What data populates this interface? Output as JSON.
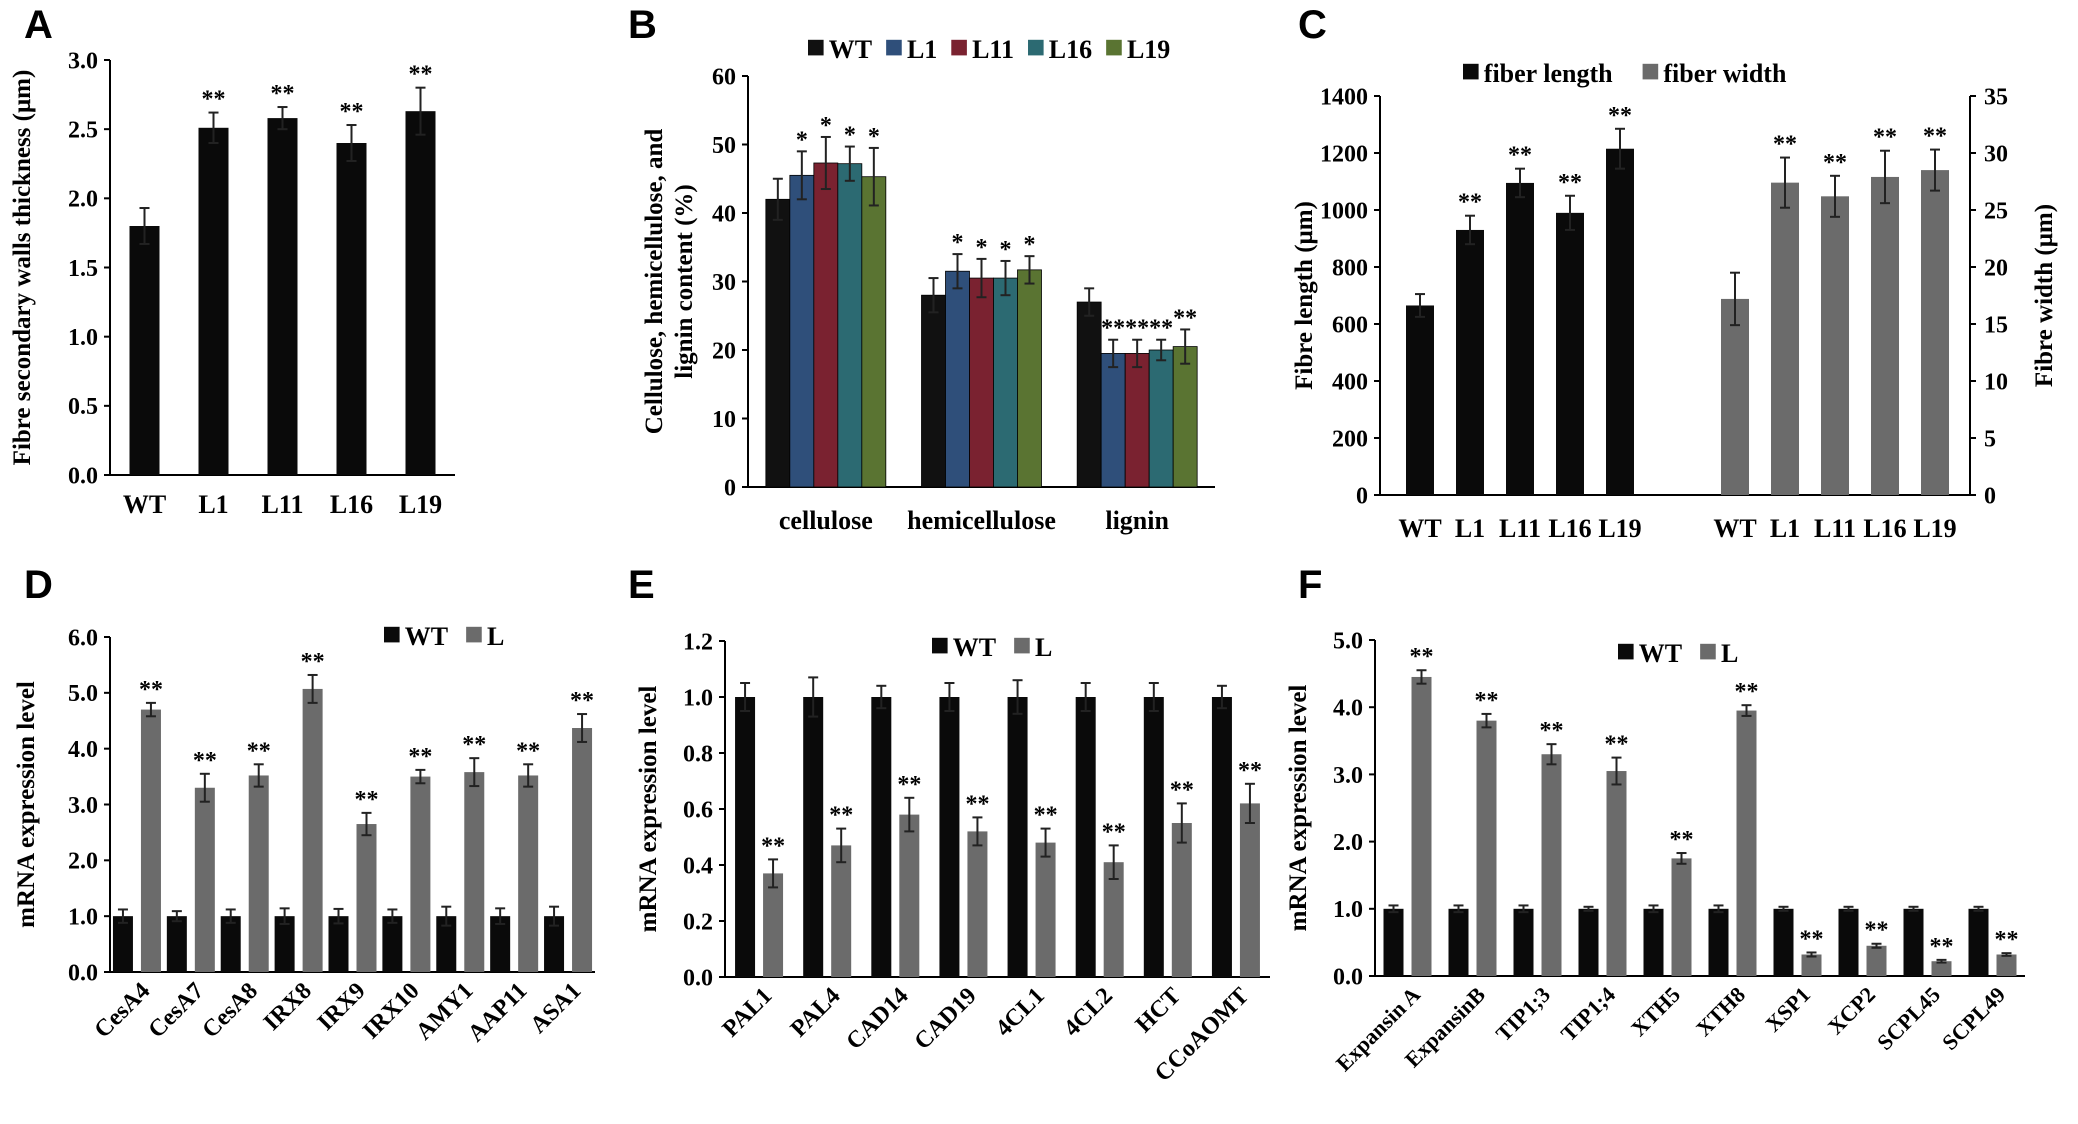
{
  "figure": {
    "panels": [
      "A",
      "B",
      "C",
      "D",
      "E",
      "F"
    ]
  },
  "chart_data": [
    {
      "panel": "A",
      "type": "bar",
      "title": "",
      "xlabel": "",
      "ylabel": "Fibre secondary walls thickness (μm)",
      "ylim": [
        0,
        3.0
      ],
      "ytick_step": 0.5,
      "ytick_decimals": 1,
      "categories": [
        "WT",
        "L1",
        "L11",
        "L16",
        "L19"
      ],
      "series": [
        {
          "name": "",
          "color": "#0a0a0a",
          "values": [
            1.8,
            2.51,
            2.58,
            2.4,
            2.63
          ],
          "errors": [
            0.13,
            0.11,
            0.08,
            0.13,
            0.17
          ],
          "marks": [
            "",
            "**",
            "**",
            "**",
            "**"
          ]
        }
      ]
    },
    {
      "panel": "B",
      "type": "bar",
      "title": "",
      "xlabel": "",
      "ylabel_lines": [
        "Cellulose, hemicellulose, and",
        "lignin content (%)"
      ],
      "ylim": [
        0,
        60
      ],
      "ytick_step": 10,
      "ytick_decimals": 0,
      "categories": [
        "cellulose",
        "hemicellulose",
        "lignin"
      ],
      "legend": [
        "WT",
        "L1",
        "L11",
        "L16",
        "L19"
      ],
      "series": [
        {
          "name": "WT",
          "color": "#111111",
          "values": [
            42,
            28,
            27
          ],
          "errors": [
            3,
            2.5,
            2
          ],
          "marks": [
            "",
            "",
            ""
          ]
        },
        {
          "name": "L1",
          "color": "#2f4f7a",
          "values": [
            45.5,
            31.5,
            19.5
          ],
          "errors": [
            3.5,
            2.5,
            2
          ],
          "marks": [
            "*",
            "*",
            "**"
          ]
        },
        {
          "name": "L11",
          "color": "#7a2230",
          "values": [
            47.3,
            30.5,
            19.5
          ],
          "errors": [
            3.8,
            2.8,
            2
          ],
          "marks": [
            "*",
            "*",
            "**"
          ]
        },
        {
          "name": "L16",
          "color": "#2c6a72",
          "values": [
            47.2,
            30.5,
            20
          ],
          "errors": [
            2.5,
            2.5,
            1.5
          ],
          "marks": [
            "*",
            "*",
            "**"
          ]
        },
        {
          "name": "L19",
          "color": "#5a7432",
          "values": [
            45.3,
            31.7,
            20.5
          ],
          "errors": [
            4.2,
            2,
            2.5
          ],
          "marks": [
            "*",
            "*",
            "**"
          ]
        }
      ]
    },
    {
      "panel": "C",
      "type": "bar",
      "title": "",
      "xlabel": "",
      "ylabel_left": "Fibre length (μm)",
      "ylabel_right": "Fibre width (μm)",
      "ylim_left": [
        0,
        1400
      ],
      "ylim_right": [
        0,
        35
      ],
      "ytick_step_left": 200,
      "ytick_step_right": 5,
      "legend": [
        "fiber length",
        "fiber width"
      ],
      "groups": [
        {
          "name": "fiber length",
          "axis": "left",
          "color": "#0a0a0a",
          "categories": [
            "WT",
            "L1",
            "L11",
            "L16",
            "L19"
          ],
          "values": [
            665,
            930,
            1095,
            990,
            1215
          ],
          "errors": [
            40,
            50,
            50,
            60,
            70
          ],
          "marks": [
            "",
            "**",
            "**",
            "**",
            "**"
          ]
        },
        {
          "name": "fiber width",
          "axis": "right",
          "color": "#6b6b6b",
          "categories": [
            "WT",
            "L1",
            "L11",
            "L16",
            "L19"
          ],
          "values": [
            17.2,
            27.4,
            26.2,
            27.9,
            28.5
          ],
          "errors": [
            2.3,
            2.2,
            1.8,
            2.3,
            1.8
          ],
          "marks": [
            "",
            "**",
            "**",
            "**",
            "**"
          ]
        }
      ]
    },
    {
      "panel": "D",
      "type": "bar",
      "title": "",
      "xlabel": "",
      "ylabel": "mRNA expression level",
      "ylim": [
        0,
        6.0
      ],
      "ytick_step": 1,
      "ytick_decimals": 1,
      "categories": [
        "CesA4",
        "CesA7",
        "CesA8",
        "IRX8",
        "IRX9",
        "IRX10",
        "AMY1",
        "AAP11",
        "ASA1"
      ],
      "legend": [
        "WT",
        "L"
      ],
      "series": [
        {
          "name": "WT",
          "color": "#0a0a0a",
          "values": [
            1,
            1,
            1,
            1,
            1,
            1,
            1,
            1,
            1
          ],
          "errors": [
            0.12,
            0.09,
            0.12,
            0.14,
            0.13,
            0.12,
            0.17,
            0.14,
            0.17
          ],
          "marks": [
            "",
            "",
            "",
            "",
            "",
            "",
            "",
            "",
            ""
          ]
        },
        {
          "name": "L",
          "color": "#6b6b6b",
          "values": [
            4.7,
            3.3,
            3.52,
            5.07,
            2.65,
            3.5,
            3.58,
            3.52,
            4.37
          ],
          "errors": [
            0.12,
            0.25,
            0.2,
            0.25,
            0.2,
            0.12,
            0.25,
            0.2,
            0.25
          ],
          "marks": [
            "**",
            "**",
            "**",
            "**",
            "**",
            "**",
            "**",
            "**",
            "**"
          ]
        }
      ]
    },
    {
      "panel": "E",
      "type": "bar",
      "title": "",
      "xlabel": "",
      "ylabel": "mRNA expression level",
      "ylim": [
        0,
        1.2
      ],
      "ytick_step": 0.2,
      "ytick_decimals": 1,
      "categories": [
        "PAL1",
        "PAL4",
        "CAD14",
        "CAD19",
        "4CL1",
        "4CL2",
        "HCT",
        "CCoAOMT"
      ],
      "legend": [
        "WT",
        "L"
      ],
      "series": [
        {
          "name": "WT",
          "color": "#0a0a0a",
          "values": [
            1,
            1,
            1,
            1,
            1,
            1,
            1,
            1
          ],
          "errors": [
            0.05,
            0.07,
            0.04,
            0.05,
            0.06,
            0.05,
            0.05,
            0.04
          ],
          "marks": [
            "",
            "",
            "",
            "",
            "",
            "",
            "",
            ""
          ]
        },
        {
          "name": "L",
          "color": "#6b6b6b",
          "values": [
            0.37,
            0.47,
            0.58,
            0.52,
            0.48,
            0.41,
            0.55,
            0.62
          ],
          "errors": [
            0.05,
            0.06,
            0.06,
            0.05,
            0.05,
            0.06,
            0.07,
            0.07
          ],
          "marks": [
            "**",
            "**",
            "**",
            "**",
            "**",
            "**",
            "**",
            "**"
          ]
        }
      ]
    },
    {
      "panel": "F",
      "type": "bar",
      "title": "",
      "xlabel": "",
      "ylabel": "mRNA expression level",
      "ylim": [
        0,
        5.0
      ],
      "ytick_step": 1,
      "ytick_decimals": 1,
      "categories": [
        "Expansin A",
        "ExpansinB",
        "TIP1;3",
        "TIP1;4",
        "XTH5",
        "XTH8",
        "XSP1",
        "XCP2",
        "SCPL45",
        "SCPL49"
      ],
      "legend": [
        "WT",
        "L"
      ],
      "series": [
        {
          "name": "WT",
          "color": "#0a0a0a",
          "values": [
            1,
            1,
            1,
            1,
            1,
            1,
            1,
            1,
            1,
            1
          ],
          "errors": [
            0.05,
            0.05,
            0.05,
            0.03,
            0.05,
            0.05,
            0.03,
            0.03,
            0.03,
            0.03
          ],
          "marks": [
            "",
            "",
            "",
            "",
            "",
            "",
            "",
            "",
            "",
            ""
          ]
        },
        {
          "name": "L",
          "color": "#6b6b6b",
          "values": [
            4.45,
            3.8,
            3.3,
            3.05,
            1.75,
            3.95,
            0.32,
            0.45,
            0.22,
            0.32
          ],
          "errors": [
            0.1,
            0.1,
            0.15,
            0.2,
            0.08,
            0.08,
            0.03,
            0.03,
            0.02,
            0.02
          ],
          "marks": [
            "**",
            "**",
            "**",
            "**",
            "**",
            "**",
            "**",
            "**",
            "**",
            "**"
          ]
        }
      ]
    }
  ]
}
